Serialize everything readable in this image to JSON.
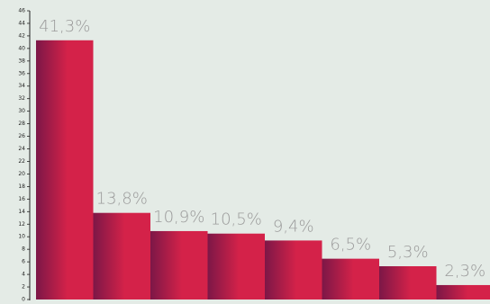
{
  "chart_data": {
    "type": "bar",
    "values": [
      41.3,
      13.8,
      10.9,
      10.5,
      9.4,
      6.5,
      5.3,
      2.3
    ],
    "value_labels": [
      "41,3%",
      "13,8%",
      "10,9%",
      "10,5%",
      "9,4%",
      "6,5%",
      "5,3%",
      "2,3%"
    ],
    "color": "#d42249",
    "shade_color": "#7c1747",
    "ylim": [
      0,
      46
    ],
    "yticks": [
      0,
      2,
      4,
      6,
      8,
      10,
      12,
      14,
      16,
      18,
      20,
      22,
      24,
      26,
      28,
      30,
      32,
      34,
      36,
      38,
      40,
      42,
      44,
      46
    ]
  }
}
